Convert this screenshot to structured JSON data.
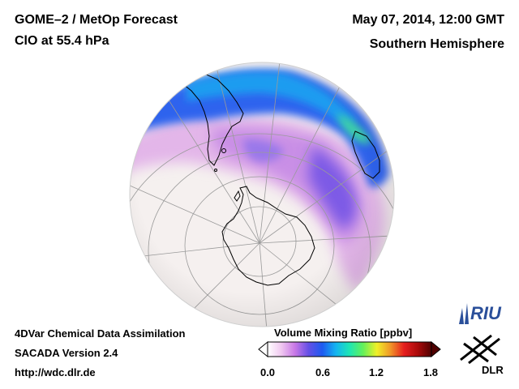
{
  "header": {
    "title": "GOME–2 / MetOp Forecast",
    "species": "ClO at 55.4 hPa",
    "datetime": "May 07, 2014, 12:00 GMT",
    "region": "Southern Hemisphere"
  },
  "footer": {
    "method": "4DVar Chemical Data Assimilation",
    "version": "SACADA Version 2.4",
    "url": "http://wdc.dlr.de"
  },
  "legend": {
    "title": "Volume Mixing Ratio [ppbv]",
    "ticks": [
      "0.0",
      "0.6",
      "1.2",
      "1.8"
    ],
    "min": 0.0,
    "max": 1.8,
    "colors": [
      "#ffffff",
      "#f0c8f0",
      "#c878e6",
      "#6450e6",
      "#1e5af0",
      "#14b4f0",
      "#1ee6b4",
      "#64f05a",
      "#f0f028",
      "#f09628",
      "#e61e1e",
      "#aa0a0a",
      "#500000"
    ]
  },
  "logos": {
    "riu": "RIU",
    "dlr": "DLR"
  },
  "map": {
    "projection": "orthographic",
    "ocean_color": "#f5f0ef",
    "land_outline_color": "#000000",
    "grid_color": "#999999"
  }
}
